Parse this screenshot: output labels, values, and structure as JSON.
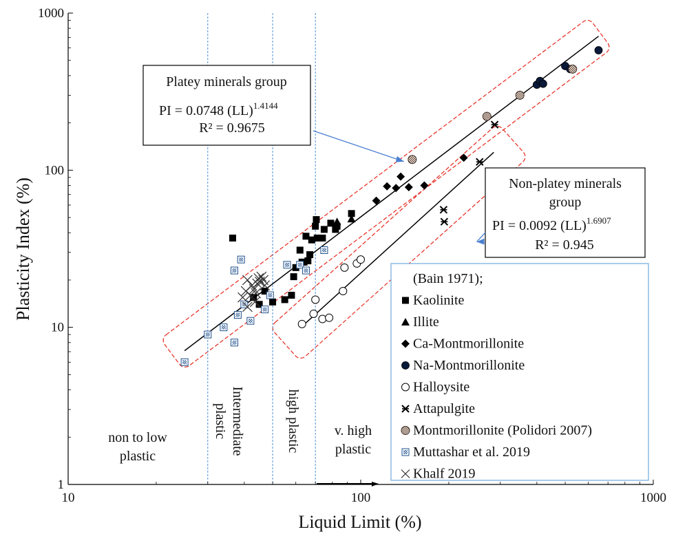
{
  "chart_data": {
    "type": "scatter",
    "title": "",
    "xlabel": "Liquid Limit (%)",
    "ylabel": "Plasticity Index (%)",
    "x_scale": "log",
    "y_scale": "log",
    "xlim": [
      10,
      1000
    ],
    "ylim": [
      1,
      1000
    ],
    "x_ticks": [
      "10",
      "100",
      "1000"
    ],
    "y_ticks": [
      "1",
      "10",
      "100",
      "1000"
    ],
    "grid": false,
    "legend_position": "bottom-right",
    "series": [
      {
        "name": "(Bain 1971);",
        "marker": "none",
        "points": []
      },
      {
        "name": "Kaolinite",
        "marker": "square",
        "points": [
          [
            36.5,
            37
          ],
          [
            43,
            15.5
          ],
          [
            45,
            14
          ],
          [
            47,
            17
          ],
          [
            50,
            14.5
          ],
          [
            55,
            15
          ],
          [
            58,
            16
          ],
          [
            59,
            21
          ],
          [
            60,
            24
          ],
          [
            62,
            31
          ],
          [
            63,
            26
          ],
          [
            64,
            26
          ],
          [
            65,
            38
          ],
          [
            66,
            26.5
          ],
          [
            67,
            29
          ],
          [
            68,
            36
          ],
          [
            70,
            44
          ],
          [
            70.5,
            48.5
          ],
          [
            71,
            37
          ],
          [
            74,
            37
          ],
          [
            75,
            42
          ],
          [
            79,
            46
          ],
          [
            82,
            42
          ],
          [
            83,
            44
          ],
          [
            93,
            53
          ]
        ]
      },
      {
        "name": "Illite",
        "marker": "triangle",
        "points": [
          [
            83,
            47
          ],
          [
            93,
            49
          ]
        ]
      },
      {
        "name": "Ca-Montmorillonite",
        "marker": "diamond",
        "points": [
          [
            113,
            64
          ],
          [
            123,
            79
          ],
          [
            132,
            77
          ],
          [
            137,
            91
          ],
          [
            146,
            78
          ],
          [
            165,
            80
          ],
          [
            225,
            120
          ]
        ]
      },
      {
        "name": "Na-Montmorillonite",
        "marker": "circle-filled",
        "points": [
          [
            400,
            350
          ],
          [
            410,
            370
          ],
          [
            420,
            355
          ],
          [
            500,
            460
          ],
          [
            520,
            440
          ],
          [
            650,
            580
          ]
        ]
      },
      {
        "name": "Halloysite",
        "marker": "circle-open",
        "points": [
          [
            63,
            10.5
          ],
          [
            69,
            12.2
          ],
          [
            70,
            15
          ],
          [
            74,
            11.3
          ],
          [
            78,
            11.5
          ],
          [
            87,
            17
          ],
          [
            88,
            24
          ],
          [
            97,
            25.5
          ],
          [
            100,
            27
          ]
        ]
      },
      {
        "name": "Attapulgite",
        "marker": "star",
        "points": [
          [
            192,
            56
          ],
          [
            193,
            47
          ],
          [
            255,
            113
          ],
          [
            287,
            195
          ]
        ]
      },
      {
        "name": "Montmorillonite (Polidori 2007)",
        "marker": "checker-circle",
        "points": [
          [
            150,
            117
          ],
          [
            270,
            220
          ],
          [
            350,
            300
          ],
          [
            530,
            440
          ]
        ]
      },
      {
        "name": "Muttashar et al. 2019",
        "marker": "checker-square",
        "points": [
          [
            25,
            6
          ],
          [
            30,
            9
          ],
          [
            34,
            10
          ],
          [
            37,
            8
          ],
          [
            38,
            12
          ],
          [
            40,
            14
          ],
          [
            42,
            11
          ],
          [
            47,
            13
          ],
          [
            49,
            16
          ],
          [
            56,
            25
          ],
          [
            37,
            23
          ],
          [
            39,
            27
          ],
          [
            62,
            25
          ],
          [
            65,
            23
          ],
          [
            75,
            31
          ]
        ]
      },
      {
        "name": "Khalf 2019",
        "marker": "x",
        "points": [
          [
            39.5,
            15.5
          ],
          [
            40.5,
            17
          ],
          [
            41,
            13.5
          ],
          [
            42,
            16
          ],
          [
            42.5,
            18.5
          ],
          [
            43.2,
            17.5
          ],
          [
            43.8,
            16.5
          ],
          [
            44.3,
            19
          ],
          [
            44.8,
            20.5
          ],
          [
            45.2,
            19.5
          ],
          [
            45.8,
            21
          ],
          [
            46.5,
            20
          ],
          [
            47,
            18.5
          ],
          [
            41,
            20
          ],
          [
            43.5,
            14.5
          ]
        ]
      }
    ],
    "fit_lines": [
      {
        "x_range": [
          25,
          650
        ]
      },
      {
        "x_range": [
          63,
          285
        ]
      }
    ],
    "regions": [
      {
        "label": "non to low plastic",
        "line_x": null
      },
      {
        "label": "Intermediate plastic",
        "line_x": 30
      },
      {
        "label": "high plastic",
        "line_x": 50
      },
      {
        "label": "v. high plastic",
        "line_x": 70
      }
    ],
    "annotations": {
      "platey": {
        "title": "Platey minerals group",
        "eq": "PI = 0.0748 (LL)",
        "exp": "1.4144",
        "r2": "R² = 0.9675",
        "target": [
          150,
          117
        ]
      },
      "nonplatey": {
        "title1": "Non-platey minerals",
        "title2": "group",
        "eq": "PI = 0.0092 (LL)",
        "exp": "1.6907",
        "r2": "R² = 0.945",
        "target": [
          182,
          35
        ]
      }
    },
    "colors": {
      "fit_line": "#000000",
      "envelope": "#e8362b",
      "divider": "#4a90d9",
      "arrow": "#4a7fd0",
      "legend_border": "#6fa8dc"
    }
  }
}
